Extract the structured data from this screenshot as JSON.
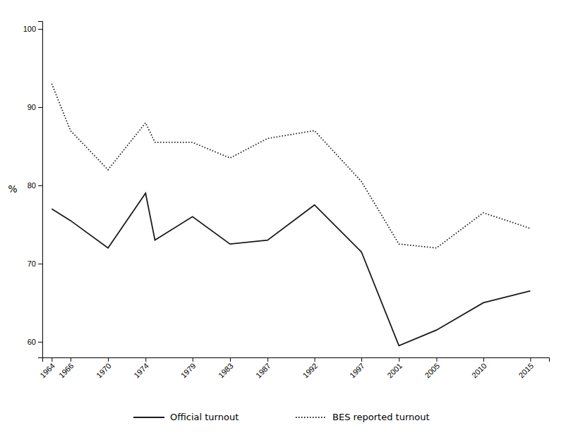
{
  "chart_data": {
    "type": "line",
    "x": [
      1964,
      1966,
      1970,
      1974,
      1975,
      1979,
      1983,
      1987,
      1992,
      1997,
      2001,
      2005,
      2010,
      2015
    ],
    "series": [
      {
        "name": "Official turnout",
        "color": "#1a1a1a",
        "line_style": "solid",
        "values": [
          77.0,
          75.5,
          72.0,
          79.0,
          73.0,
          76.0,
          72.5,
          73.0,
          77.5,
          71.5,
          59.5,
          61.5,
          65.0,
          66.5
        ]
      },
      {
        "name": "BES reported turnout",
        "color": "#1a1a1a",
        "line_style": "dotted",
        "values": [
          93.0,
          87.0,
          82.0,
          88.0,
          85.5,
          85.5,
          83.5,
          86.0,
          87.0,
          80.5,
          72.5,
          72.0,
          76.5,
          74.5
        ]
      }
    ],
    "xlim": [
      1963,
      2017
    ],
    "xticks": [
      1964,
      1966,
      1970,
      1974,
      1979,
      1983,
      1987,
      1992,
      1997,
      2001,
      2005,
      2010,
      2015
    ],
    "ylim": [
      58,
      101
    ],
    "yticks": [
      60,
      70,
      80,
      90,
      100
    ],
    "ylabel": "%",
    "grid": false,
    "legend": "bottom"
  }
}
